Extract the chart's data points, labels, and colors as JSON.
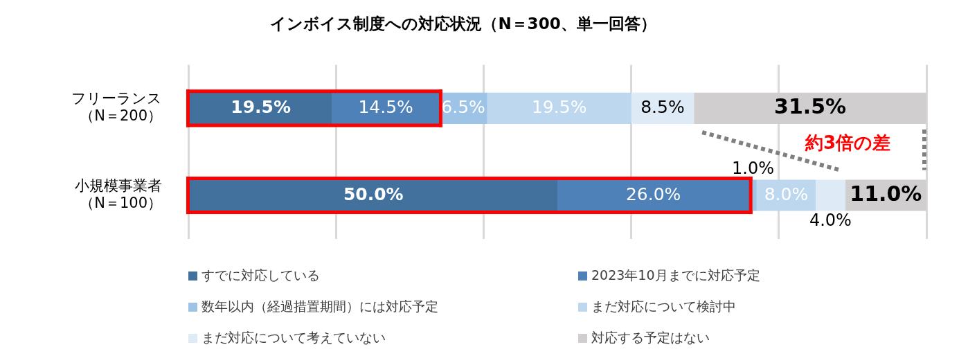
{
  "chart_data": {
    "type": "bar",
    "orientation": "horizontal",
    "stacked": true,
    "title": "インボイス制度への対応状況（N＝300、単一回答）",
    "categories": [
      "フリーランス（N＝200）",
      "小規模事業者（N＝100）"
    ],
    "series": [
      {
        "name": "すでに対応している",
        "color": "#41719c",
        "values": [
          19.5,
          50.0
        ],
        "value_labels": [
          "19.5%",
          "50.0%"
        ]
      },
      {
        "name": "2023年10月までに対応予定",
        "color": "#4e81b7",
        "values": [
          14.5,
          26.0
        ],
        "value_labels": [
          "14.5%",
          "26.0%"
        ]
      },
      {
        "name": "数年以内（経過措置期間）には対応予定",
        "color": "#9dc3e6",
        "values": [
          6.5,
          1.0
        ],
        "value_labels": [
          "6.5%",
          "1.0%"
        ]
      },
      {
        "name": "まだ対応について検討中",
        "color": "#bdd7ee",
        "values": [
          19.5,
          8.0
        ],
        "value_labels": [
          "19.5%",
          "8.0%"
        ]
      },
      {
        "name": "まだ対応について考えていない",
        "color": "#deebf7",
        "values": [
          8.5,
          4.0
        ],
        "value_labels": [
          "8.5%",
          "4.0%"
        ]
      },
      {
        "name": "対応する予定はない",
        "color": "#d0cece",
        "values": [
          31.5,
          11.0
        ],
        "value_labels": [
          "31.5%",
          "11.0%"
        ]
      }
    ],
    "xlim": [
      0,
      100
    ],
    "xticks": [
      {
        "value": 0,
        "label": null
      },
      {
        "value": 20,
        "label": null
      },
      {
        "value": 40,
        "label": null
      },
      {
        "value": 60,
        "label": null
      },
      {
        "value": 80,
        "label": null
      },
      {
        "value": 100,
        "label": null
      }
    ],
    "tick_labels": "y",
    "grid": "x",
    "legend": "bottom",
    "annotations": [
      "約3倍の差"
    ]
  }
}
